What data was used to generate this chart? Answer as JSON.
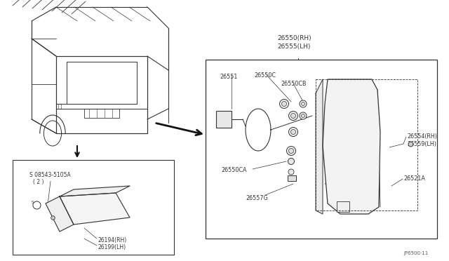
{
  "bg_color": "#ffffff",
  "lc": "#333333",
  "tc": "#333333",
  "figsize": [
    6.4,
    3.72
  ],
  "dpi": 100,
  "footer": "JP6500·11",
  "label_26550RH": "26550(RH)",
  "label_26555LH": "26555(LH)",
  "label_26551": "26551",
  "label_26550C": "26550C",
  "label_26550CB": "26550CB",
  "label_26550CA": "26550CA",
  "label_26557G": "26557G",
  "label_26554RH": "26554(RH)",
  "label_26559LH": "26559(LH)",
  "label_26521A": "26521A",
  "label_screw": "S 08543-5105A",
  "label_screw2": "( 2 )",
  "label_26194RH": "26194(RH)",
  "label_26199LH": "26199(LH)"
}
